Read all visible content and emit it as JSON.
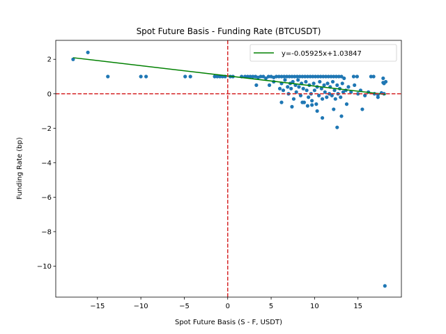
{
  "chart_data": {
    "type": "scatter",
    "title": "Spot Future Basis - Funding Rate (BTCUSDT)",
    "xlabel": "Spot Future Basis (S - F, USDT)",
    "ylabel": "Funding Rate (bp)",
    "xlim": [
      -19.8,
      20.0
    ],
    "ylim": [
      -11.8,
      3.1
    ],
    "xticks": [
      -15,
      -10,
      -5,
      0,
      5,
      10,
      15
    ],
    "yticks": [
      2,
      0,
      -2,
      -4,
      -6,
      -8,
      -10
    ],
    "xtick_labels": [
      "−15",
      "−10",
      "−5",
      "0",
      "5",
      "10",
      "15"
    ],
    "ytick_labels": [
      "2",
      "0",
      "−2",
      "−4",
      "−6",
      "−8",
      "−10"
    ],
    "point_color": "#1f77b4",
    "fit_color": "#008000",
    "refline_color": "#d62728",
    "fit": {
      "slope": -0.05925,
      "intercept": 1.03847,
      "x_range": [
        -17.8,
        18.2
      ],
      "label": "y=-0.05925x+1.03847"
    },
    "reference_lines": {
      "x": 0,
      "y": 0
    },
    "legend_position": "top-right",
    "points": [
      [
        -17.8,
        2.0
      ],
      [
        -16.1,
        2.4
      ],
      [
        -13.8,
        1.0
      ],
      [
        -10.0,
        1.0
      ],
      [
        -9.4,
        1.0
      ],
      [
        -4.9,
        1.0
      ],
      [
        -4.3,
        1.0
      ],
      [
        -1.5,
        1.0
      ],
      [
        -1.2,
        1.0
      ],
      [
        -0.9,
        1.0
      ],
      [
        -0.6,
        1.0
      ],
      [
        -0.3,
        1.0
      ],
      [
        0.3,
        1.0
      ],
      [
        0.6,
        1.0
      ],
      [
        1.6,
        1.0
      ],
      [
        2.0,
        1.0
      ],
      [
        2.3,
        1.0
      ],
      [
        2.6,
        1.0
      ],
      [
        2.9,
        1.0
      ],
      [
        3.2,
        1.0
      ],
      [
        3.5,
        0.95
      ],
      [
        3.8,
        1.0
      ],
      [
        4.1,
        1.0
      ],
      [
        4.4,
        0.9
      ],
      [
        4.7,
        1.0
      ],
      [
        5.0,
        1.0
      ],
      [
        5.3,
        0.95
      ],
      [
        5.6,
        1.0
      ],
      [
        5.9,
        1.0
      ],
      [
        6.2,
        1.0
      ],
      [
        6.5,
        1.0
      ],
      [
        6.8,
        1.0
      ],
      [
        7.1,
        1.0
      ],
      [
        7.4,
        1.0
      ],
      [
        7.7,
        1.0
      ],
      [
        8.0,
        1.0
      ],
      [
        8.3,
        1.0
      ],
      [
        8.6,
        1.0
      ],
      [
        8.9,
        1.0
      ],
      [
        9.2,
        1.0
      ],
      [
        9.5,
        1.0
      ],
      [
        9.8,
        1.0
      ],
      [
        10.1,
        1.0
      ],
      [
        10.4,
        1.0
      ],
      [
        10.7,
        1.0
      ],
      [
        11.0,
        1.0
      ],
      [
        11.3,
        1.0
      ],
      [
        11.6,
        1.0
      ],
      [
        11.9,
        1.0
      ],
      [
        12.2,
        1.0
      ],
      [
        12.5,
        1.0
      ],
      [
        12.8,
        1.0
      ],
      [
        13.1,
        1.0
      ],
      [
        13.4,
        0.9
      ],
      [
        14.5,
        1.0
      ],
      [
        14.9,
        1.0
      ],
      [
        16.5,
        1.0
      ],
      [
        16.8,
        1.0
      ],
      [
        17.9,
        0.9
      ],
      [
        3.3,
        0.5
      ],
      [
        4.8,
        0.5
      ],
      [
        5.3,
        0.7
      ],
      [
        6.0,
        0.3
      ],
      [
        6.2,
        0.6
      ],
      [
        6.4,
        0.2
      ],
      [
        6.6,
        0.8
      ],
      [
        6.9,
        0.4
      ],
      [
        7.0,
        0.0
      ],
      [
        7.2,
        0.6
      ],
      [
        7.3,
        0.3
      ],
      [
        7.5,
        0.7
      ],
      [
        7.6,
        -0.3
      ],
      [
        7.8,
        0.5
      ],
      [
        7.9,
        0.1
      ],
      [
        8.1,
        0.8
      ],
      [
        8.2,
        0.4
      ],
      [
        8.4,
        -0.1
      ],
      [
        8.5,
        0.6
      ],
      [
        8.7,
        0.3
      ],
      [
        8.8,
        -0.5
      ],
      [
        9.0,
        0.7
      ],
      [
        9.1,
        0.2
      ],
      [
        9.3,
        -0.2
      ],
      [
        9.4,
        0.5
      ],
      [
        9.6,
        0.0
      ],
      [
        9.7,
        -0.4
      ],
      [
        9.9,
        0.6
      ],
      [
        10.0,
        0.2
      ],
      [
        10.2,
        -0.6
      ],
      [
        10.3,
        0.4
      ],
      [
        10.5,
        -0.1
      ],
      [
        10.6,
        0.7
      ],
      [
        10.8,
        0.3
      ],
      [
        10.9,
        -0.3
      ],
      [
        11.1,
        0.5
      ],
      [
        11.2,
        0.1
      ],
      [
        11.4,
        -0.2
      ],
      [
        11.5,
        0.6
      ],
      [
        11.7,
        0.0
      ],
      [
        11.8,
        0.4
      ],
      [
        12.0,
        -0.1
      ],
      [
        12.1,
        0.7
      ],
      [
        12.3,
        0.2
      ],
      [
        12.4,
        -0.3
      ],
      [
        12.6,
        0.5
      ],
      [
        12.7,
        0.0
      ],
      [
        12.9,
        0.3
      ],
      [
        13.0,
        -0.2
      ],
      [
        13.2,
        0.6
      ],
      [
        13.3,
        0.1
      ],
      [
        13.6,
        0.2
      ],
      [
        13.9,
        0.4
      ],
      [
        14.2,
        0.1
      ],
      [
        14.6,
        0.5
      ],
      [
        15.0,
        0.0
      ],
      [
        15.3,
        0.2
      ],
      [
        15.8,
        -0.1
      ],
      [
        16.2,
        0.1
      ],
      [
        16.9,
        0.0
      ],
      [
        17.3,
        -0.05
      ],
      [
        17.7,
        0.05
      ],
      [
        6.2,
        -0.5
      ],
      [
        7.4,
        -0.75
      ],
      [
        8.6,
        -0.5
      ],
      [
        9.2,
        -0.7
      ],
      [
        9.7,
        -0.65
      ],
      [
        10.3,
        -1.0
      ],
      [
        10.9,
        -1.4
      ],
      [
        12.2,
        -0.9
      ],
      [
        12.6,
        -1.95
      ],
      [
        13.1,
        -1.3
      ],
      [
        13.7,
        -0.6
      ],
      [
        15.5,
        -0.9
      ],
      [
        17.3,
        -0.2
      ],
      [
        18.1,
        -11.15
      ],
      [
        18.0,
        0.6
      ],
      [
        18.2,
        0.7
      ],
      [
        17.9,
        0.65
      ],
      [
        18.0,
        0.0
      ]
    ]
  }
}
